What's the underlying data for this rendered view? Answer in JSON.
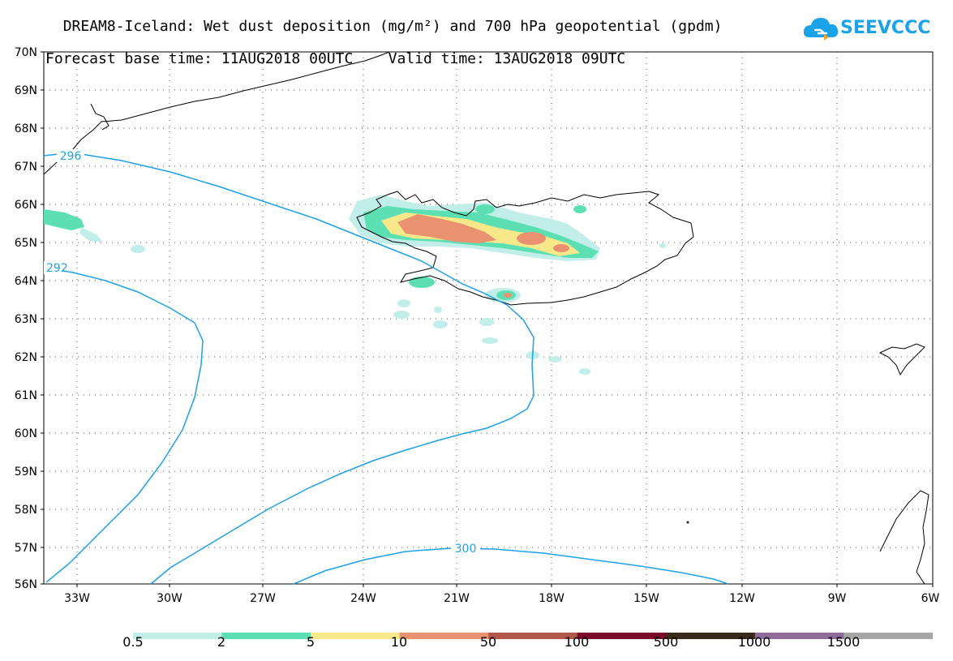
{
  "title": {
    "line1": "DREAM8-Iceland: Wet dust deposition (mg/m²) and 700 hPa geopotential (gpdm)",
    "line2": "Forecast base time: 11AUG2018 00UTC    Valid time: 13AUG2018 09UTC"
  },
  "logo": {
    "text": "SEEVCCC",
    "color": "#1aa3e8"
  },
  "map": {
    "lat_labels": [
      "70N",
      "69N",
      "68N",
      "67N",
      "66N",
      "65N",
      "64N",
      "63N",
      "62N",
      "61N",
      "60N",
      "59N",
      "58N",
      "57N",
      "56N"
    ],
    "lon_labels": [
      "33W",
      "30W",
      "27W",
      "24W",
      "21W",
      "18W",
      "15W",
      "12W",
      "9W",
      "6W"
    ],
    "contour_labels": [
      "296",
      "292",
      "300"
    ],
    "contour_color": "#1ea0ea",
    "coastline_color": "#000000",
    "grid": "dotted"
  },
  "legend": {
    "colors": [
      "#c2eee9",
      "#5ddfb4",
      "#f7e98a",
      "#ea9270",
      "#b2564a",
      "#7b0b28",
      "#3a2a1a",
      "#8e6b9b",
      "#a7a7a7"
    ],
    "labels": [
      "0.5",
      "2",
      "5",
      "10",
      "50",
      "100",
      "500",
      "1000",
      "1500"
    ]
  }
}
